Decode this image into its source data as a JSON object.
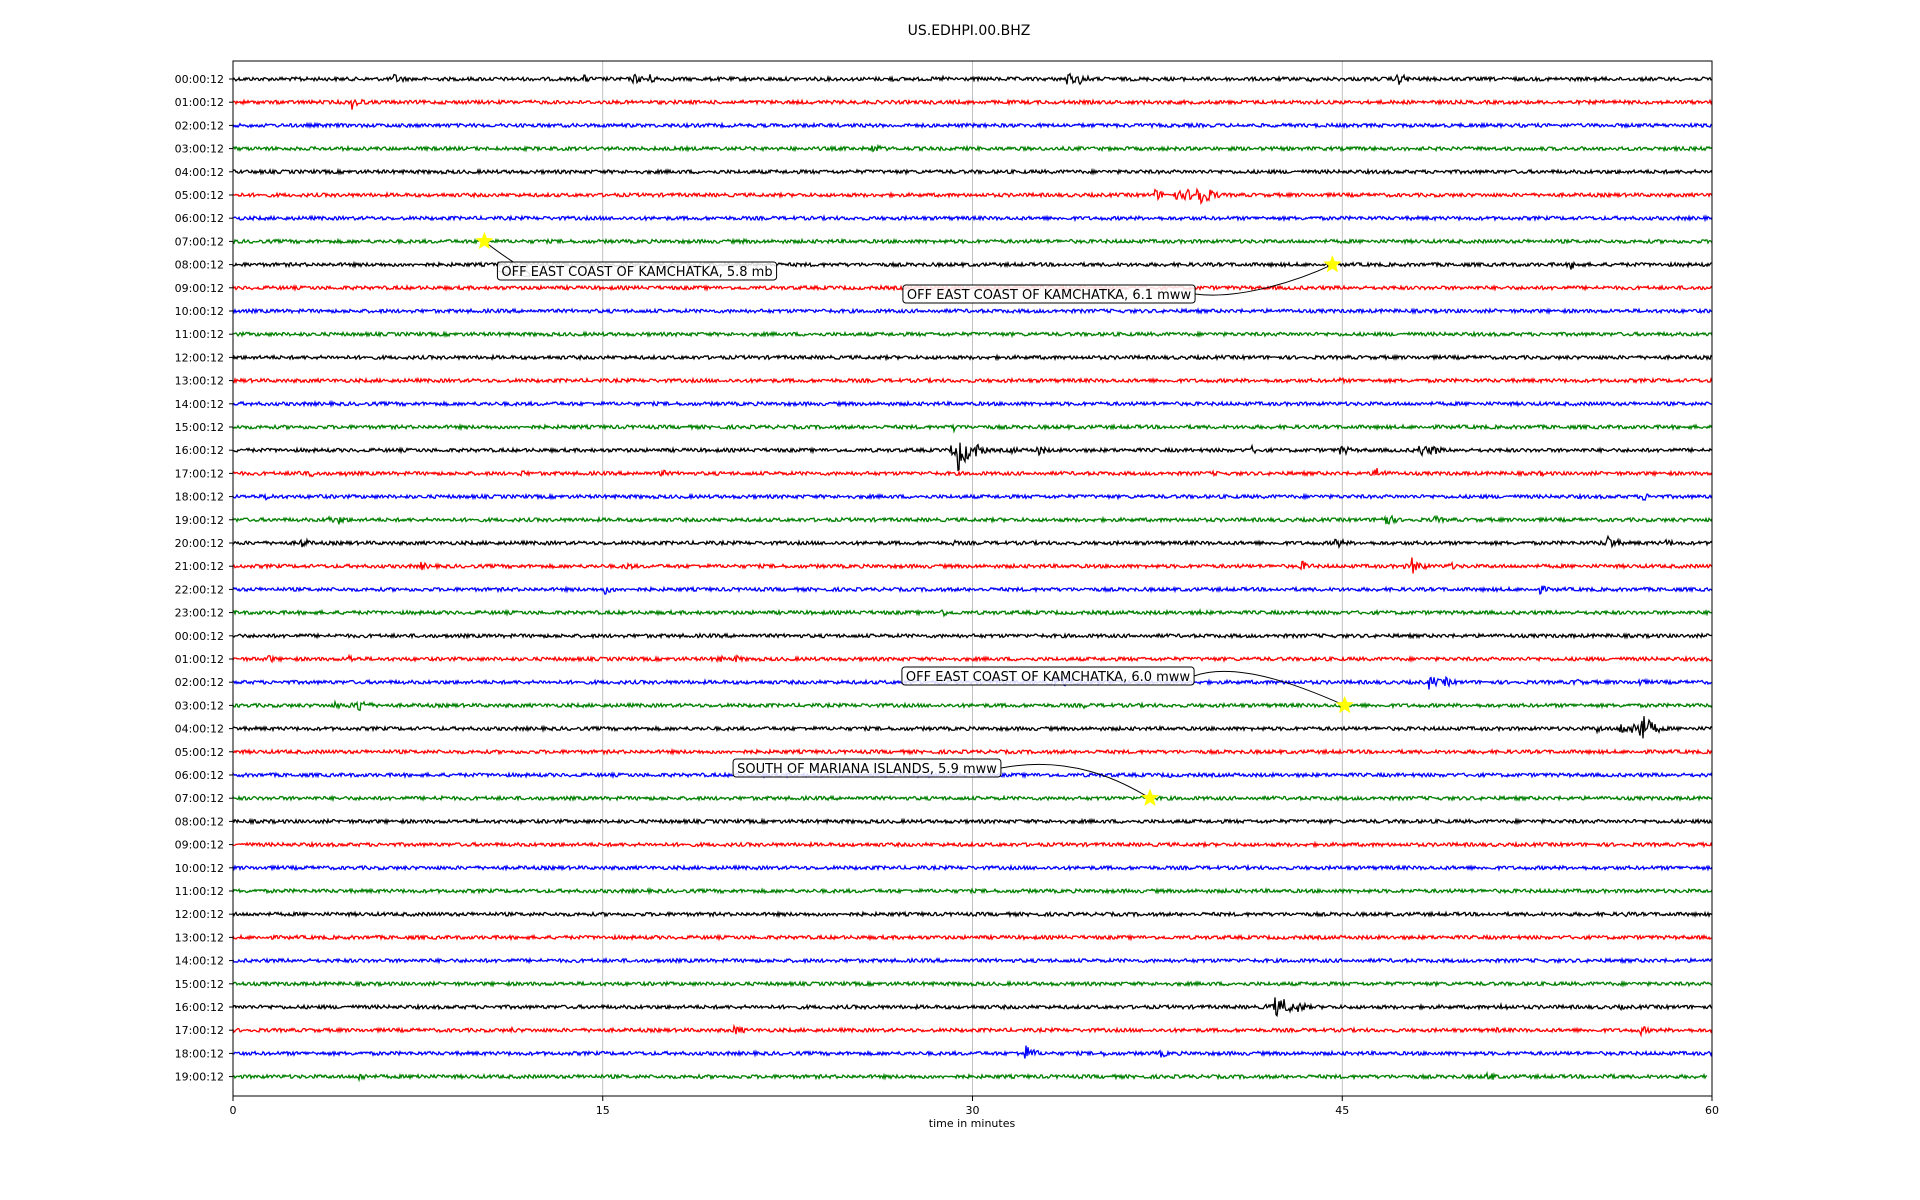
{
  "chart_data": {
    "type": "line",
    "title": "US.EDHPI.00.BHZ",
    "xlabel": "time in minutes",
    "ylabel": "",
    "xlim": [
      0,
      60
    ],
    "x_ticks": [
      0,
      15,
      30,
      45,
      60
    ],
    "grid": true,
    "colors": [
      "#000000",
      "#ff0000",
      "#0000ff",
      "#008000"
    ],
    "rows": [
      {
        "label": "00:00:12",
        "color": "#000000",
        "events": [
          [
            2.7,
            2
          ],
          [
            6.5,
            4
          ],
          [
            14.2,
            3
          ],
          [
            16.2,
            4
          ],
          [
            16.8,
            4
          ],
          [
            20.8,
            2
          ],
          [
            26.7,
            2
          ],
          [
            28.8,
            2
          ],
          [
            33.8,
            5
          ],
          [
            34.3,
            4
          ],
          [
            43.7,
            2
          ],
          [
            47.2,
            5
          ]
        ]
      },
      {
        "label": "01:00:12",
        "color": "#ff0000",
        "events": [
          [
            4.8,
            5
          ]
        ]
      },
      {
        "label": "02:00:12",
        "color": "#0000ff",
        "events": []
      },
      {
        "label": "03:00:12",
        "color": "#008000",
        "events": [
          [
            25.9,
            4
          ]
        ]
      },
      {
        "label": "04:00:12",
        "color": "#000000",
        "events": []
      },
      {
        "label": "05:00:12",
        "color": "#ff0000",
        "events": [
          [
            37.4,
            4
          ],
          [
            38.2,
            4
          ],
          [
            38.6,
            5
          ],
          [
            39.1,
            10
          ],
          [
            39.6,
            4
          ]
        ]
      },
      {
        "label": "06:00:12",
        "color": "#0000ff",
        "events": []
      },
      {
        "label": "07:00:12",
        "color": "#008000",
        "events": [
          [
            20.6,
            2
          ]
        ]
      },
      {
        "label": "08:00:12",
        "color": "#000000",
        "events": [
          [
            54.2,
            4
          ]
        ]
      },
      {
        "label": "09:00:12",
        "color": "#ff0000",
        "events": []
      },
      {
        "label": "10:00:12",
        "color": "#0000ff",
        "events": []
      },
      {
        "label": "11:00:12",
        "color": "#008000",
        "events": []
      },
      {
        "label": "12:00:12",
        "color": "#000000",
        "events": []
      },
      {
        "label": "13:00:12",
        "color": "#ff0000",
        "events": [
          [
            44.9,
            2
          ]
        ]
      },
      {
        "label": "14:00:12",
        "color": "#0000ff",
        "events": []
      },
      {
        "label": "15:00:12",
        "color": "#008000",
        "events": [
          [
            29.2,
            3
          ]
        ]
      },
      {
        "label": "16:00:12",
        "color": "#000000",
        "events": [
          [
            29.4,
            14
          ],
          [
            30.1,
            5
          ],
          [
            31.5,
            3
          ],
          [
            32.6,
            4
          ],
          [
            44.9,
            4
          ],
          [
            41.3,
            3
          ],
          [
            48.1,
            5
          ],
          [
            48.6,
            4
          ]
        ]
      },
      {
        "label": "17:00:12",
        "color": "#ff0000",
        "events": [
          [
            2.5,
            3
          ],
          [
            3.1,
            3
          ],
          [
            4.5,
            2
          ],
          [
            11.6,
            3
          ],
          [
            16.2,
            2
          ],
          [
            17.3,
            3
          ],
          [
            39.7,
            2
          ],
          [
            46.3,
            5
          ],
          [
            53.0,
            2
          ]
        ]
      },
      {
        "label": "18:00:12",
        "color": "#0000ff",
        "events": [
          [
            1.3,
            3
          ],
          [
            3.4,
            2
          ],
          [
            57.2,
            3
          ]
        ]
      },
      {
        "label": "19:00:12",
        "color": "#008000",
        "events": [
          [
            3.8,
            3
          ],
          [
            4.3,
            3
          ],
          [
            46.6,
            6
          ],
          [
            48.7,
            3
          ]
        ]
      },
      {
        "label": "20:00:12",
        "color": "#000000",
        "events": [
          [
            2.7,
            4
          ],
          [
            29.2,
            2
          ],
          [
            44.7,
            4
          ],
          [
            55.7,
            6
          ],
          [
            58.1,
            3
          ]
        ]
      },
      {
        "label": "21:00:12",
        "color": "#ff0000",
        "events": [
          [
            7.6,
            3
          ],
          [
            15.9,
            3
          ],
          [
            43.3,
            4
          ],
          [
            47.8,
            6
          ],
          [
            49.3,
            3
          ]
        ]
      },
      {
        "label": "22:00:12",
        "color": "#0000ff",
        "events": [
          [
            15.0,
            4
          ],
          [
            28.3,
            2
          ],
          [
            53.0,
            3
          ]
        ]
      },
      {
        "label": "23:00:12",
        "color": "#008000",
        "events": [
          [
            28.7,
            3
          ],
          [
            39.2,
            2
          ]
        ]
      },
      {
        "label": "00:00:12",
        "color": "#000000",
        "events": []
      },
      {
        "label": "01:00:12",
        "color": "#ff0000",
        "events": [
          [
            1.4,
            3
          ],
          [
            4.7,
            3
          ],
          [
            19.6,
            3
          ],
          [
            20.3,
            3
          ]
        ]
      },
      {
        "label": "02:00:12",
        "color": "#0000ff",
        "events": [
          [
            33.3,
            6
          ],
          [
            33.9,
            4
          ],
          [
            48.5,
            5
          ],
          [
            49.1,
            4
          ],
          [
            54.4,
            3
          ],
          [
            57.0,
            3
          ]
        ]
      },
      {
        "label": "03:00:12",
        "color": "#008000",
        "events": [
          [
            4.1,
            3
          ],
          [
            5.0,
            6
          ],
          [
            34.5,
            2
          ]
        ]
      },
      {
        "label": "04:00:12",
        "color": "#000000",
        "events": [
          [
            55.3,
            3
          ],
          [
            56.2,
            5
          ],
          [
            57.0,
            14
          ],
          [
            57.6,
            4
          ]
        ]
      },
      {
        "label": "05:00:12",
        "color": "#ff0000",
        "events": []
      },
      {
        "label": "06:00:12",
        "color": "#0000ff",
        "events": [
          [
            37.9,
            2
          ]
        ]
      },
      {
        "label": "07:00:12",
        "color": "#008000",
        "events": [
          [
            8.2,
            3
          ]
        ]
      },
      {
        "label": "08:00:12",
        "color": "#000000",
        "events": []
      },
      {
        "label": "09:00:12",
        "color": "#ff0000",
        "events": []
      },
      {
        "label": "10:00:12",
        "color": "#0000ff",
        "events": []
      },
      {
        "label": "11:00:12",
        "color": "#008000",
        "events": []
      },
      {
        "label": "12:00:12",
        "color": "#000000",
        "events": [
          [
            56.5,
            2
          ]
        ]
      },
      {
        "label": "13:00:12",
        "color": "#ff0000",
        "events": []
      },
      {
        "label": "14:00:12",
        "color": "#0000ff",
        "events": []
      },
      {
        "label": "15:00:12",
        "color": "#008000",
        "events": []
      },
      {
        "label": "16:00:12",
        "color": "#000000",
        "events": [
          [
            42.2,
            8
          ],
          [
            42.6,
            6
          ],
          [
            43.2,
            4
          ],
          [
            51.4,
            3
          ],
          [
            56.2,
            2
          ]
        ]
      },
      {
        "label": "17:00:12",
        "color": "#ff0000",
        "events": [
          [
            11.3,
            2
          ],
          [
            20.3,
            4
          ],
          [
            51.2,
            2
          ],
          [
            57.0,
            4
          ]
        ]
      },
      {
        "label": "18:00:12",
        "color": "#0000ff",
        "events": [
          [
            32.1,
            6
          ],
          [
            35.3,
            2
          ],
          [
            37.6,
            3
          ]
        ]
      },
      {
        "label": "19:00:12",
        "color": "#008000",
        "events": [
          [
            5.1,
            3
          ],
          [
            7.4,
            3
          ],
          [
            14.1,
            2
          ],
          [
            50.8,
            4
          ],
          [
            55.6,
            3
          ]
        ]
      }
    ],
    "trace_end_fraction": 0.997,
    "annotations": [
      {
        "text": "OFF EAST COAST OF KAMCHATKA, 5.8 mb",
        "row": 7,
        "minute": 10.2
      },
      {
        "text": "OFF EAST COAST OF KAMCHATKA, 6.1 mww",
        "row": 8,
        "minute": 44.6
      },
      {
        "text": "OFF EAST COAST OF KAMCHATKA, 6.0 mww",
        "row": 27,
        "minute": 45.1
      },
      {
        "text": "SOUTH OF MARIANA ISLANDS, 5.9 mww",
        "row": 31,
        "minute": 37.2
      }
    ],
    "marker_color": "#ffff00"
  }
}
